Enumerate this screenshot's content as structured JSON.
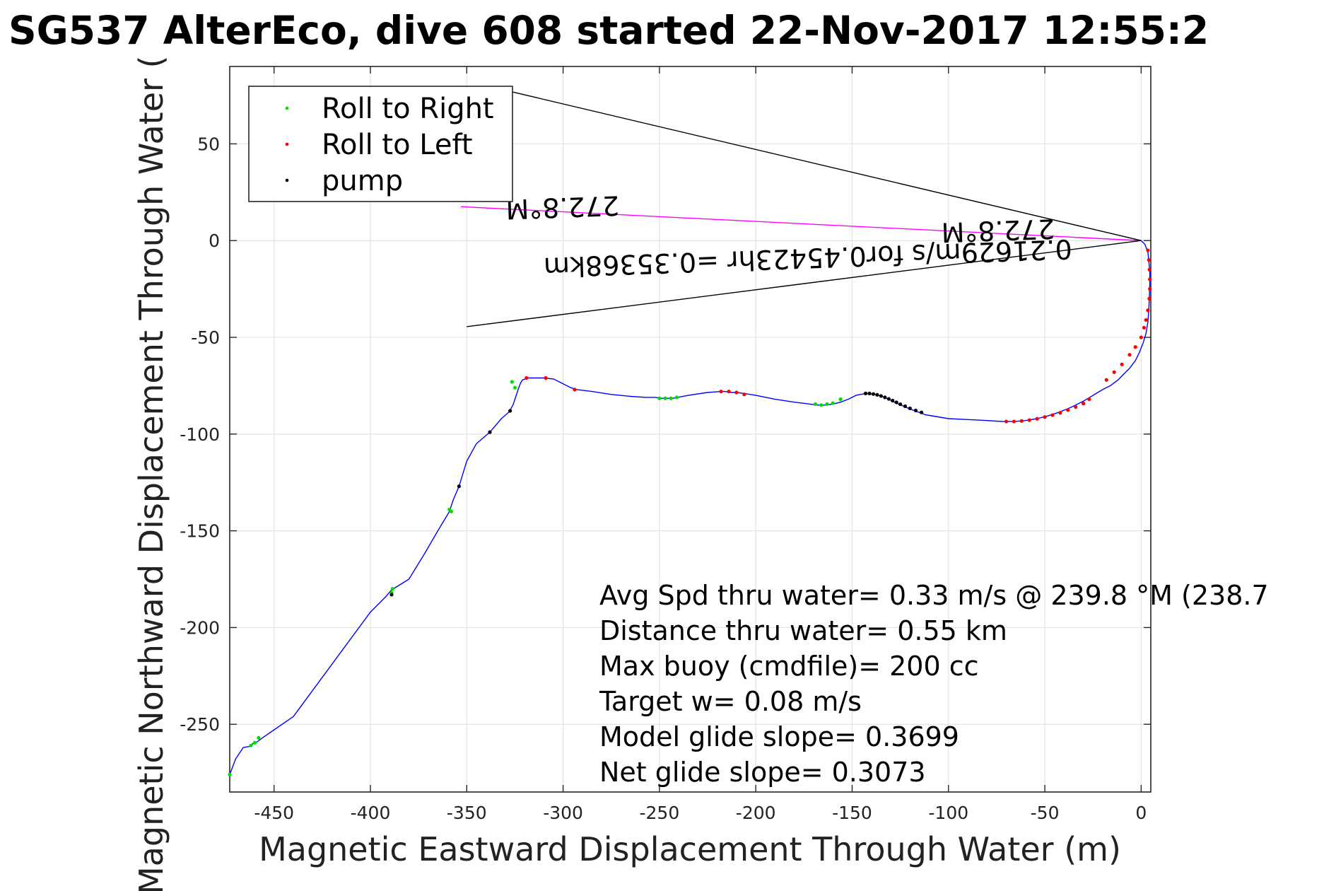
{
  "chart_data": {
    "type": "line",
    "title": "SG537 AlterEco, dive 608 started 22-Nov-2017 12:55:2",
    "xlabel": "Magnetic Eastward Displacement Through Water (m)",
    "ylabel": "Magnetic Northward Displacement Through Water (",
    "xlim": [
      -473,
      5
    ],
    "ylim": [
      -285,
      90
    ],
    "xticks": [
      -450,
      -400,
      -350,
      -300,
      -250,
      -200,
      -150,
      -100,
      -50,
      0
    ],
    "yticks": [
      50,
      0,
      -50,
      -100,
      -150,
      -200,
      -250
    ],
    "grid": true,
    "legend_position": "top-left",
    "colors": {
      "track": "#0000ff",
      "roll_right": "#00dd00",
      "roll_left": "#ff0000",
      "pump": "#000000",
      "current_line": "#ff00ff",
      "wedge_lines": "#000000"
    },
    "legend": [
      {
        "label": "Roll to Right",
        "color": "#00dd00"
      },
      {
        "label": "Roll to Left",
        "color": "#ff0000"
      },
      {
        "label": "pump",
        "color": "#000000"
      }
    ],
    "series": [
      {
        "name": "track",
        "x": [
          0,
          2,
          3.5,
          4,
          4.5,
          4.5,
          4.3,
          4,
          3.5,
          2.5,
          1,
          -1,
          -3,
          -6,
          -9,
          -12,
          -16,
          -20,
          -25,
          -30,
          -36,
          -42,
          -48,
          -54,
          -60,
          -66,
          -72,
          -80,
          -90,
          -100,
          -112,
          -120,
          -127,
          -133,
          -138,
          -143,
          -148,
          -152,
          -156,
          -160,
          -164,
          -168,
          -172,
          -180,
          -190,
          -200,
          -206,
          -210,
          -213,
          -216,
          -218,
          -225,
          -235,
          -243,
          -247,
          -250,
          -252,
          -257,
          -265,
          -275,
          -285,
          -293,
          -296,
          -300,
          -305,
          -310,
          -314,
          -318,
          -321,
          -322,
          -323,
          -324.5,
          -326,
          -328,
          -332,
          -338,
          -345,
          -350,
          -354,
          -357,
          -359,
          -365,
          -372,
          -380,
          -389,
          -392,
          -400,
          -420,
          -440,
          -456,
          -458,
          -460,
          -461,
          -463,
          -466,
          -470,
          -473
        ],
        "y": [
          0,
          -2,
          -6,
          -11,
          -16,
          -22,
          -28,
          -35,
          -42,
          -48,
          -53,
          -58,
          -62,
          -66,
          -69,
          -72,
          -75,
          -77,
          -80,
          -83,
          -86,
          -88.5,
          -90.5,
          -92,
          -93,
          -93.5,
          -93.5,
          -93,
          -92.5,
          -92,
          -90,
          -87,
          -84,
          -81,
          -79.5,
          -79,
          -80,
          -82,
          -83.5,
          -84.5,
          -85,
          -85,
          -84.5,
          -83.5,
          -82,
          -80,
          -79,
          -78.5,
          -78.5,
          -78,
          -78,
          -78.5,
          -80,
          -81.5,
          -81.5,
          -81.5,
          -81,
          -81,
          -80.5,
          -79.5,
          -78,
          -77,
          -76,
          -74,
          -71.5,
          -71,
          -71,
          -71,
          -72,
          -73.5,
          -76,
          -80.5,
          -85,
          -88.5,
          -92,
          -99,
          -105,
          -114,
          -127,
          -134,
          -140,
          -150,
          -162,
          -175,
          -180.5,
          -184,
          -192,
          -219,
          -246,
          -257,
          -258.5,
          -260,
          -260,
          -261.5,
          -262,
          -268,
          -276
        ]
      },
      {
        "name": "Roll to Right",
        "x": [
          -169,
          -166,
          -163,
          -160,
          -156,
          -250,
          -247,
          -244,
          -241,
          -325,
          -326.5,
          -358,
          -359,
          -388.5,
          -389,
          -458,
          -460,
          -462,
          -473
        ],
        "y": [
          -84.5,
          -85,
          -84.5,
          -84,
          -82,
          -81.5,
          -81.5,
          -81.5,
          -81,
          -76,
          -73,
          -140,
          -139,
          -180,
          -182,
          -257,
          -259.5,
          -261,
          -276
        ]
      },
      {
        "name": "Roll to Left",
        "x": [
          -70,
          -66,
          -62,
          -58,
          -54,
          -50,
          -46,
          -42,
          -38,
          -34,
          -30,
          -27,
          -18,
          -14,
          -10,
          -6,
          -3,
          0,
          1.5,
          2.5,
          3.5,
          4.2,
          4.5,
          4.5,
          4.3,
          4,
          3.5,
          -218,
          -214,
          -210,
          -206,
          -294,
          -309,
          -319
        ],
        "y": [
          -93.5,
          -93.5,
          -93.2,
          -92.8,
          -92.1,
          -91.2,
          -90.2,
          -89,
          -87.6,
          -86,
          -84.2,
          -82,
          -72,
          -68,
          -64,
          -59,
          -55,
          -50,
          -45,
          -41,
          -36,
          -30,
          -25,
          -20,
          -15,
          -10,
          -5,
          -78,
          -78,
          -78.5,
          -79.5,
          -77,
          -71,
          -71
        ]
      },
      {
        "name": "pump",
        "x": [
          -143,
          -141,
          -139,
          -137,
          -135,
          -133,
          -131,
          -129,
          -127,
          -125,
          -122.5,
          -120,
          -117,
          -114,
          -327.5,
          -338,
          -354,
          -389
        ],
        "y": [
          -79,
          -79,
          -79.3,
          -79.7,
          -80.3,
          -81,
          -81.8,
          -82.7,
          -83.6,
          -84.6,
          -85.6,
          -86.7,
          -87.8,
          -88.8,
          -88,
          -99,
          -127,
          -183
        ]
      }
    ],
    "lines": [
      {
        "name": "current",
        "color": "#ff00ff",
        "x": [
          0,
          -353
        ],
        "y": [
          0,
          17.5
        ]
      },
      {
        "name": "wedge-upper",
        "color": "#000000",
        "x": [
          0,
          -327
        ],
        "y": [
          0,
          77
        ]
      },
      {
        "name": "wedge-lower",
        "color": "#000000",
        "x": [
          0,
          -350
        ],
        "y": [
          0,
          -44.5
        ]
      }
    ],
    "flipped_labels": [
      {
        "text": "0.21629m/s for0.45423hr =0.35368km",
        "x": -36,
        "y": 0.5
      },
      {
        "text": "272.8°M",
        "x": -45,
        "y": 11
      },
      {
        "text": "272.8°M",
        "x": -271,
        "y": 23
      }
    ],
    "annotations": [
      "Avg Spd thru water=  0.33 m/s @ 239.8 °M (238.7",
      "Distance thru water=  0.55 km",
      "Max buoy (cmdfile)= 200 cc",
      "Target w= 0.08 m/s",
      "Model glide slope= 0.3699",
      "Net glide slope= 0.3073"
    ]
  }
}
